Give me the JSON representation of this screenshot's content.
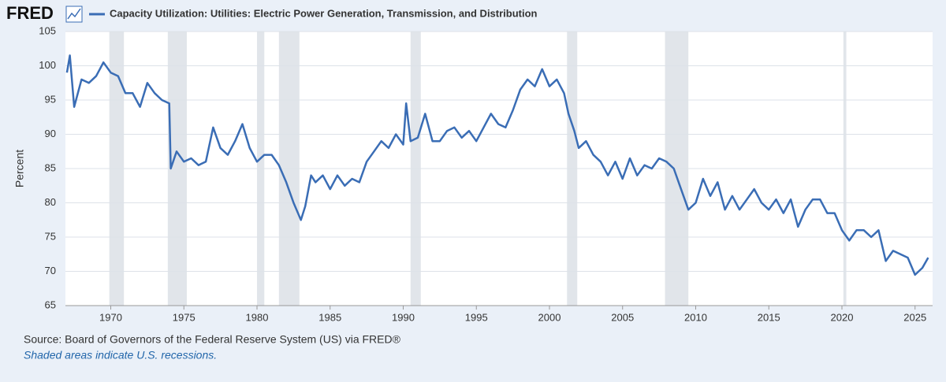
{
  "logo": "FRED",
  "source": "Source: Board of Governors of the Federal Reserve System (US) via FRED®",
  "note": "Shaded areas indicate U.S. recessions.",
  "chart_data": {
    "type": "line",
    "ylabel": "Percent",
    "xlim": [
      1966.9,
      2026.2
    ],
    "xticks": [
      1970,
      1975,
      1980,
      1985,
      1990,
      1995,
      2000,
      2005,
      2010,
      2015,
      2020,
      2025
    ],
    "ylim": [
      65,
      105
    ],
    "yticks": [
      65,
      70,
      75,
      80,
      85,
      90,
      95,
      100,
      105
    ],
    "grid": true,
    "recessions": [
      [
        1969.9,
        1970.9
      ],
      [
        1973.9,
        1975.2
      ],
      [
        1980.0,
        1980.5
      ],
      [
        1981.5,
        1982.9
      ],
      [
        1990.5,
        1991.2
      ],
      [
        2001.2,
        2001.9
      ],
      [
        2007.9,
        2009.5
      ],
      [
        2020.1,
        2020.3
      ]
    ],
    "x": [
      1967.0,
      1967.2,
      1967.5,
      1968,
      1968.5,
      1969,
      1969.5,
      1970,
      1970.5,
      1971,
      1971.5,
      1972,
      1972.5,
      1973,
      1973.5,
      1974,
      1974.1,
      1974.5,
      1975,
      1975.5,
      1976,
      1976.5,
      1977,
      1977.5,
      1978,
      1978.5,
      1979,
      1979.5,
      1980,
      1980.5,
      1981,
      1981.5,
      1982,
      1982.5,
      1983,
      1983.3,
      1983.7,
      1984,
      1984.5,
      1985,
      1985.5,
      1986,
      1986.5,
      1987,
      1987.5,
      1988,
      1988.5,
      1989,
      1989.5,
      1990,
      1990.2,
      1990.5,
      1991,
      1991.5,
      1992,
      1992.5,
      1993,
      1993.5,
      1994,
      1994.5,
      1995,
      1995.5,
      1996,
      1996.5,
      1997,
      1997.5,
      1998,
      1998.5,
      1999,
      1999.5,
      2000,
      2000.5,
      2001,
      2001.3,
      2001.7,
      2002,
      2002.5,
      2003,
      2003.5,
      2004,
      2004.5,
      2005,
      2005.5,
      2006,
      2006.5,
      2007,
      2007.5,
      2008,
      2008.5,
      2009,
      2009.5,
      2010,
      2010.5,
      2011,
      2011.5,
      2012,
      2012.5,
      2013,
      2013.5,
      2014,
      2014.5,
      2015,
      2015.5,
      2016,
      2016.5,
      2017,
      2017.5,
      2018,
      2018.5,
      2019,
      2019.5,
      2020,
      2020.5,
      2021,
      2021.5,
      2022,
      2022.5,
      2023,
      2023.5,
      2024,
      2024.5,
      2025,
      2025.5,
      2025.9
    ],
    "series": [
      {
        "name": "Capacity Utilization: Utilities: Electric Power Generation, Transmission, and Distribution",
        "color": "#3a6db5",
        "values": [
          99,
          101.5,
          94,
          98,
          97.5,
          98.5,
          100.5,
          99,
          98.5,
          96,
          96,
          94,
          97.5,
          96,
          95,
          94.5,
          85,
          87.5,
          86,
          86.5,
          85.5,
          86,
          91,
          88,
          87,
          89,
          91.5,
          88,
          86,
          87,
          87,
          85.5,
          83,
          80,
          77.5,
          79.5,
          84,
          83,
          84,
          82,
          84,
          82.5,
          83.5,
          83,
          86,
          87.5,
          89,
          88,
          90,
          88.5,
          94.5,
          89,
          89.5,
          93,
          89,
          89,
          90.5,
          91,
          89.5,
          90.5,
          89,
          91,
          93,
          91.5,
          91,
          93.5,
          96.5,
          98,
          97,
          99.5,
          97,
          98,
          96,
          93,
          90.5,
          88,
          89,
          87,
          86,
          84,
          86,
          83.5,
          86.5,
          84,
          85.5,
          85,
          86.5,
          86,
          85,
          82,
          79,
          80,
          83.5,
          81,
          83,
          79,
          81,
          79,
          80.5,
          82,
          80,
          79,
          80.5,
          78.5,
          80.5,
          76.5,
          79,
          80.5,
          80.5,
          78.5,
          78.5,
          76,
          74.5,
          76,
          76,
          75,
          76,
          71.5,
          73,
          72.5,
          72,
          69.5,
          70.5,
          72
        ]
      }
    ]
  }
}
